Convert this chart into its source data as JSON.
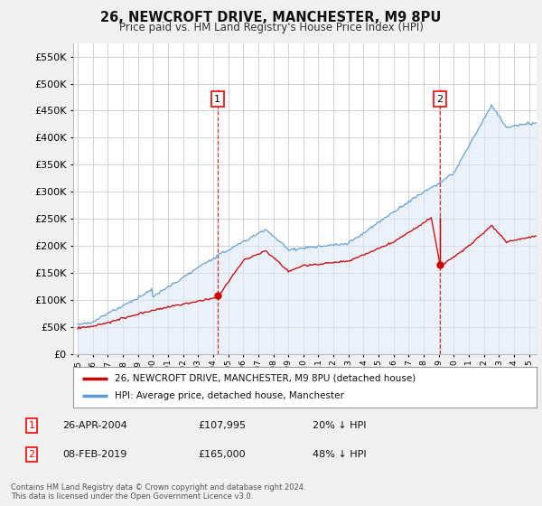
{
  "title": "26, NEWCROFT DRIVE, MANCHESTER, M9 8PU",
  "subtitle": "Price paid vs. HM Land Registry's House Price Index (HPI)",
  "hpi_label": "HPI: Average price, detached house, Manchester",
  "property_label": "26, NEWCROFT DRIVE, MANCHESTER, M9 8PU (detached house)",
  "sale1_date": "26-APR-2004",
  "sale1_price": 107995,
  "sale1_label": "20% ↓ HPI",
  "sale2_date": "08-FEB-2019",
  "sale2_price": 165000,
  "sale2_label": "48% ↓ HPI",
  "footer": "Contains HM Land Registry data © Crown copyright and database right 2024.\nThis data is licensed under the Open Government Licence v3.0.",
  "ylim_max": 575000,
  "ylim_min": 0,
  "hpi_color": "#5b9bd5",
  "hpi_fill_color": "#dce9f5",
  "property_color": "#cc0000",
  "dashed_color": "#cc0000",
  "x_start_year": 1995,
  "x_end_year": 2025,
  "sale1_t": 2004.29,
  "sale2_t": 2019.08,
  "fig_bg": "#f2f2f2",
  "plot_bg": "#ffffff"
}
